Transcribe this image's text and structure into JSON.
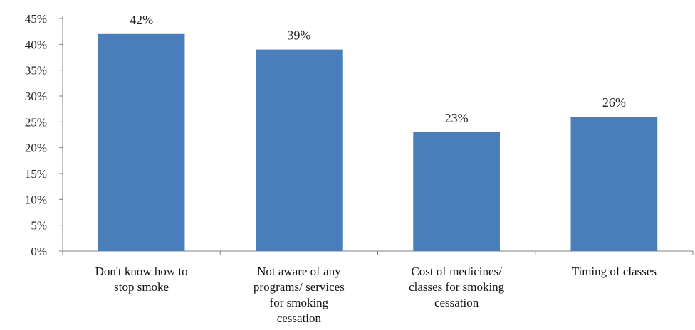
{
  "chart_data": {
    "type": "bar",
    "categories": [
      [
        "Don't know how to",
        "stop smoke"
      ],
      [
        "Not aware of any",
        "programs/ services",
        "for smoking",
        "cessation"
      ],
      [
        "Cost of medicines/",
        "classes for smoking",
        "cessation"
      ],
      [
        "Timing of classes"
      ]
    ],
    "values": [
      42,
      39,
      23,
      26
    ],
    "data_labels": [
      "42%",
      "39%",
      "23%",
      "26%"
    ],
    "yticks": [
      "0%",
      "5%",
      "10%",
      "15%",
      "20%",
      "25%",
      "30%",
      "35%",
      "40%",
      "45%"
    ],
    "ylim": [
      0,
      45
    ],
    "title": "",
    "xlabel": "",
    "ylabel": "",
    "grid": false,
    "bar_color": "#4a7ebb"
  }
}
